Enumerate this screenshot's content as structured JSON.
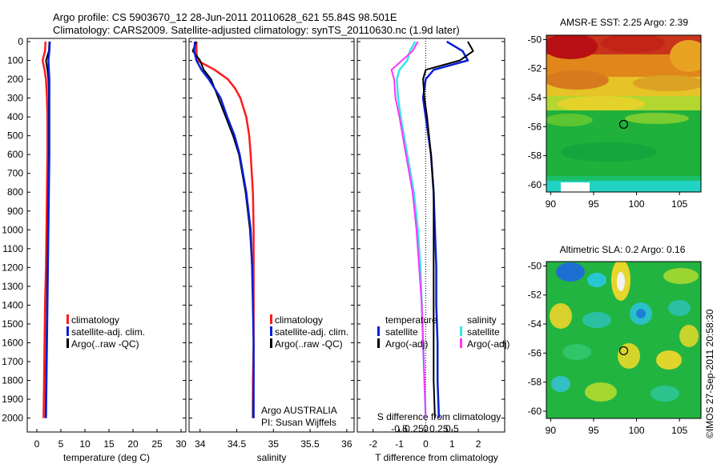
{
  "title": {
    "line1": "Argo profile: CS 5903670_12 28-Jun-2011 20110628_621 55.84S 98.501E",
    "line2": "Climatology: CARS2009. Satellite-adjusted climatology: synTS_20110630.nc (1.9d later)"
  },
  "depth_ticks": [
    "0",
    "100",
    "200",
    "300",
    "400",
    "500",
    "600",
    "700",
    "800",
    "900",
    "1000",
    "1100",
    "1200",
    "1300",
    "1400",
    "1500",
    "1600",
    "1700",
    "1800",
    "1900",
    "2000"
  ],
  "colors": {
    "climatology": "#ff1a1a",
    "satellite": "#0a1fd6",
    "argo": "#000000",
    "sal_satellite": "#33e6e6",
    "sal_argo": "#ff33ff"
  },
  "legend": {
    "climatology": "climatology",
    "satellite_adj": "satellite-adj. clim.",
    "argo_raw": "Argo(..raw -QC)",
    "temperature": "temperature",
    "salinity": "salinity",
    "satellite": "satellite",
    "argo_adj": "Argo(-adj)"
  },
  "annotation": {
    "argo_country": "Argo AUSTRALIA",
    "pi": "PI: Susan Wijffels",
    "s_diff_label": "S difference from climatology",
    "watermark": "©IMOS 27-Sep-2011 20:58:30"
  },
  "chart_data": [
    {
      "type": "line",
      "xlabel": "temperature (deg C)",
      "ylabel": "",
      "xlim": [
        -2,
        31
      ],
      "ylim": [
        2060,
        0
      ],
      "xticks": [
        "0",
        "5",
        "10",
        "15",
        "20",
        "25",
        "30"
      ],
      "depth": [
        0,
        50,
        100,
        150,
        200,
        300,
        400,
        600,
        800,
        1000,
        1200,
        1400,
        1600,
        1800,
        2000
      ],
      "series": [
        {
          "name": "climatology",
          "x": [
            1.8,
            1.7,
            1.2,
            1.6,
            1.9,
            2.1,
            2.2,
            2.2,
            2.1,
            2.0,
            1.9,
            1.7,
            1.6,
            1.5,
            1.4
          ]
        },
        {
          "name": "satellite-adj. clim.",
          "x": [
            2.6,
            2.5,
            1.9,
            2.2,
            2.4,
            2.5,
            2.5,
            2.5,
            2.4,
            2.3,
            2.2,
            2.1,
            2.0,
            1.9,
            1.8
          ]
        },
        {
          "name": "Argo(..raw -QC)",
          "x": [
            2.7,
            2.6,
            2.4,
            2.5,
            2.6,
            2.6,
            2.6,
            2.6,
            2.5,
            2.4,
            2.3,
            2.2,
            2.1,
            2.0,
            1.9
          ]
        }
      ]
    },
    {
      "type": "line",
      "xlabel": "salinity",
      "ylabel": "",
      "xlim": [
        33.85,
        36.1
      ],
      "ylim": [
        2060,
        0
      ],
      "xticks": [
        "34",
        "34.5",
        "35",
        "35.5",
        "36"
      ],
      "depth": [
        0,
        50,
        100,
        150,
        200,
        250,
        300,
        400,
        500,
        600,
        800,
        1000,
        1200,
        1400,
        1600,
        1800,
        2000
      ],
      "series": [
        {
          "name": "climatology",
          "x": [
            33.95,
            33.95,
            33.96,
            34.2,
            34.38,
            34.48,
            34.55,
            34.63,
            34.67,
            34.69,
            34.72,
            34.73,
            34.73,
            34.73,
            34.73,
            34.72,
            34.72
          ]
        },
        {
          "name": "satellite-adj. clim.",
          "x": [
            33.95,
            33.9,
            34.0,
            34.05,
            34.15,
            34.2,
            34.25,
            34.35,
            34.45,
            34.53,
            34.62,
            34.68,
            34.71,
            34.72,
            34.73,
            34.73,
            34.72
          ]
        },
        {
          "name": "Argo(..raw -QC)",
          "x": [
            33.93,
            33.92,
            33.95,
            34.02,
            34.12,
            34.2,
            34.28,
            34.37,
            34.47,
            34.54,
            34.63,
            34.69,
            34.71,
            34.72,
            34.73,
            34.73,
            34.73
          ]
        }
      ]
    },
    {
      "type": "line",
      "xlabel": "T difference from climatology",
      "ylabel": "",
      "xlim": [
        -2.6,
        3.0
      ],
      "ylim": [
        2060,
        0
      ],
      "xticks": [
        "-2",
        "-1",
        "0",
        "1",
        "2"
      ],
      "s_xticks": [
        "-0.5",
        "-0.25",
        "0",
        "0.25",
        "0.5"
      ],
      "depth": [
        0,
        50,
        100,
        150,
        200,
        300,
        400,
        600,
        800,
        1000,
        1200,
        1400,
        1600,
        1800,
        2000
      ],
      "series": [
        {
          "name": "temperature satellite",
          "x": [
            0.8,
            1.4,
            1.6,
            0.3,
            0.0,
            -0.1,
            0.0,
            0.2,
            0.3,
            0.35,
            0.4,
            0.4,
            0.45,
            0.45,
            0.5
          ]
        },
        {
          "name": "temperature Argo(-adj)",
          "x": [
            1.6,
            1.8,
            1.3,
            0.0,
            -0.1,
            -0.05,
            0.05,
            0.2,
            0.3,
            0.3,
            0.3,
            0.3,
            0.3,
            0.3,
            0.35
          ]
        },
        {
          "name": "salinity satellite",
          "x": [
            -0.4,
            -0.6,
            -0.7,
            -1.0,
            -1.1,
            -1.05,
            -0.95,
            -0.7,
            -0.45,
            -0.3,
            -0.2,
            -0.15,
            -0.1,
            -0.05,
            0.0
          ]
        },
        {
          "name": "salinity Argo(-adj)",
          "x": [
            -0.3,
            -0.5,
            -0.9,
            -1.3,
            -1.2,
            -1.15,
            -1.0,
            -0.75,
            -0.5,
            -0.35,
            -0.25,
            -0.15,
            -0.1,
            -0.05,
            0.0
          ]
        }
      ]
    },
    {
      "type": "heatmap",
      "title": "AMSR-E SST: 2.25 Argo: 2.39",
      "xlim": [
        89.5,
        107.5
      ],
      "ylim": [
        -60.5,
        -49.7
      ],
      "xticks": [
        "90",
        "95",
        "100",
        "105"
      ],
      "yticks": [
        "-50",
        "-52",
        "-54",
        "-56",
        "-58",
        "-60"
      ],
      "marker": {
        "lon": 98.5,
        "lat": -55.84
      }
    },
    {
      "type": "heatmap",
      "title": "Altimetric SLA: 0.2 Argo: 0.16",
      "xlim": [
        89.5,
        107.5
      ],
      "ylim": [
        -60.5,
        -49.7
      ],
      "xticks": [
        "90",
        "95",
        "100",
        "105"
      ],
      "yticks": [
        "-50",
        "-52",
        "-54",
        "-56",
        "-58",
        "-60"
      ],
      "marker": {
        "lon": 98.5,
        "lat": -55.84
      }
    }
  ]
}
